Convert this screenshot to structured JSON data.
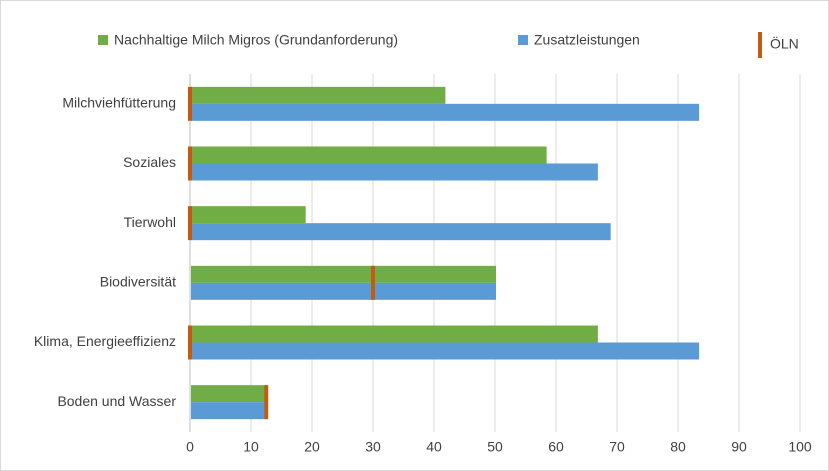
{
  "chart_data": {
    "type": "bar",
    "orientation": "horizontal",
    "categories": [
      "Milchviehfütterung",
      "Soziales",
      "Tierwohl",
      "Biodiversität",
      "Klima, Energieeffizienz",
      "Boden und Wasser"
    ],
    "series": [
      {
        "name": "Nachhaltige Milch Migros (Grundanforderung)",
        "color": "#70ad47",
        "values": [
          41.7,
          58.3,
          18.8,
          50,
          66.7,
          12.5
        ]
      },
      {
        "name": "Zusatzleistungen",
        "color": "#5b9bd5",
        "values": [
          83.3,
          66.7,
          68.8,
          50,
          83.3,
          12.5
        ]
      },
      {
        "name": "ÖLN",
        "color": "#c55a11",
        "mark": "line",
        "values": [
          0,
          0,
          0,
          30,
          0,
          12.5
        ]
      }
    ],
    "xlim": [
      0,
      100
    ],
    "xticks": [
      0,
      10,
      20,
      30,
      40,
      50,
      60,
      70,
      80,
      90,
      100
    ],
    "grid": true,
    "legend": "top"
  }
}
